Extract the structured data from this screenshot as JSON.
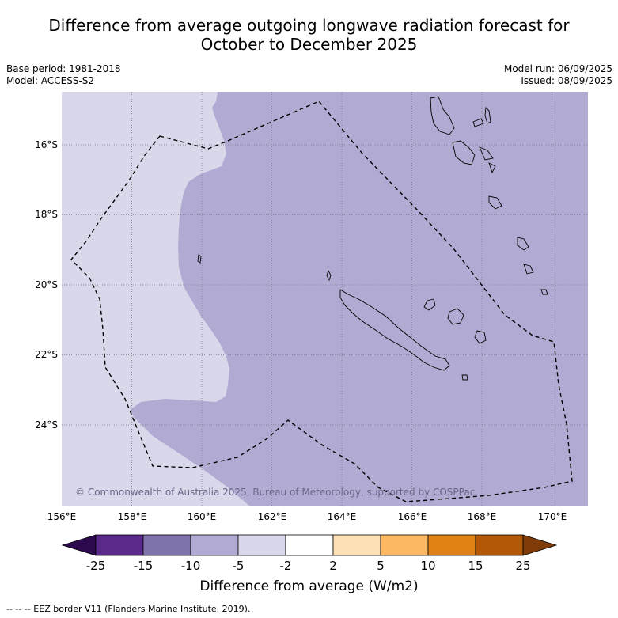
{
  "title_line1": "Difference from average outgoing longwave radiation forecast for",
  "title_line2": "October to December 2025",
  "meta": {
    "base_period": "Base period: 1981-2018",
    "model": "Model: ACCESS-S2",
    "model_run": "Model run: 06/09/2025",
    "issued": "Issued: 08/09/2025"
  },
  "map": {
    "lat_labels": [
      "16°S",
      "18°S",
      "20°S",
      "22°S",
      "24°S"
    ],
    "lon_labels": [
      "156°E",
      "158°E",
      "160°E",
      "162°E",
      "164°E",
      "166°E",
      "168°E",
      "170°E"
    ],
    "copyright": "© Commonwealth of Australia 2025, Bureau of Meteorology, supported by COSPPac",
    "colors": {
      "category_-5_to_-2": "#d8d8ea",
      "category_-10_to_-5": "#b1abd3"
    }
  },
  "colorbar": {
    "ticks": [
      "-25",
      "-15",
      "-10",
      "-5",
      "-2",
      "2",
      "5",
      "10",
      "15",
      "25"
    ],
    "colors": [
      "#2d0a4e",
      "#5a2a8b",
      "#8073ac",
      "#b1abd3",
      "#d8d8ea",
      "#ffffff",
      "#fee0b6",
      "#fdb863",
      "#e08214",
      "#b35806",
      "#7f3b08"
    ],
    "label": "Difference from average (W/m2)"
  },
  "footnote": "--  --  -- EEZ border V11 (Flanders Marine Institute, 2019)."
}
